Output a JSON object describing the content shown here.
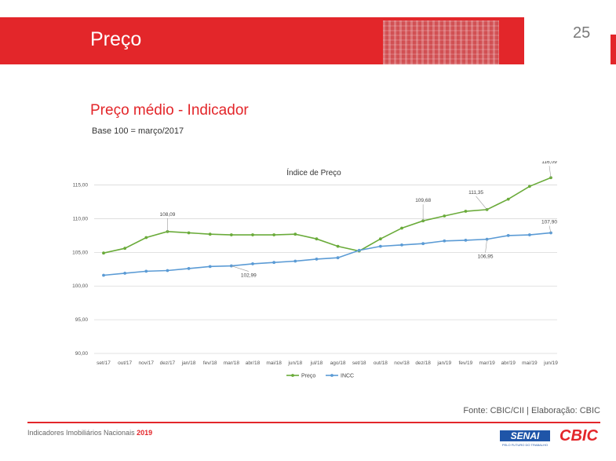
{
  "header": {
    "title": "Preço",
    "page_number": "25",
    "color": "#e3262a"
  },
  "section": {
    "title": "Preço médio - Indicador",
    "base_note": "Base 100 = março/2017"
  },
  "chart_data": {
    "type": "line",
    "title": "Índice de Preço",
    "categories": [
      "set/17",
      "out/17",
      "nov/17",
      "dez/17",
      "jan/18",
      "fev/18",
      "mar/18",
      "abr/18",
      "mai/18",
      "jun/18",
      "jul/18",
      "ago/18",
      "set/18",
      "out/18",
      "nov/18",
      "dez/18",
      "jan/19",
      "fev/19",
      "mar/19",
      "abr/19",
      "mai/19",
      "jun/19"
    ],
    "series": [
      {
        "name": "Preço",
        "color": "#6aab3a",
        "values": [
          104.9,
          105.6,
          107.2,
          108.09,
          107.9,
          107.7,
          107.6,
          107.6,
          107.6,
          107.7,
          107.0,
          105.9,
          105.2,
          107.0,
          108.6,
          109.68,
          110.4,
          111.1,
          111.35,
          112.9,
          114.8,
          116.09
        ]
      },
      {
        "name": "INCC",
        "color": "#5b9bd5",
        "values": [
          101.6,
          101.9,
          102.2,
          102.3,
          102.6,
          102.9,
          102.99,
          103.3,
          103.5,
          103.7,
          104.0,
          104.2,
          105.3,
          105.9,
          106.1,
          106.3,
          106.7,
          106.8,
          106.95,
          107.5,
          107.6,
          107.9
        ]
      }
    ],
    "ylim": [
      90,
      116
    ],
    "yticks": [
      "90,00",
      "95,00",
      "100,00",
      "105,00",
      "110,00",
      "115,00"
    ],
    "ytick_values": [
      90,
      95,
      100,
      105,
      110,
      115
    ],
    "annotations": [
      {
        "series": 0,
        "index": 3,
        "label": "108,09"
      },
      {
        "series": 0,
        "index": 15,
        "label": "109,68"
      },
      {
        "series": 0,
        "index": 18,
        "label": "111,35"
      },
      {
        "series": 0,
        "index": 21,
        "label": "116,09"
      },
      {
        "series": 1,
        "index": 6,
        "label": "102,99"
      },
      {
        "series": 1,
        "index": 18,
        "label": "106,95"
      },
      {
        "series": 1,
        "index": 21,
        "label": "107,90"
      }
    ],
    "grid": true,
    "legend": "bottom"
  },
  "footer": {
    "source": "Fonte: CBIC/CII | Elaboração: CBIC",
    "publication": "Indicadores Imobiliários Nacionais",
    "year": "2019",
    "logo_senai": "SENAI",
    "logo_senai_sub": "PELO FUTURO DO TRABALHO",
    "logo_cbic": "CBIC"
  }
}
